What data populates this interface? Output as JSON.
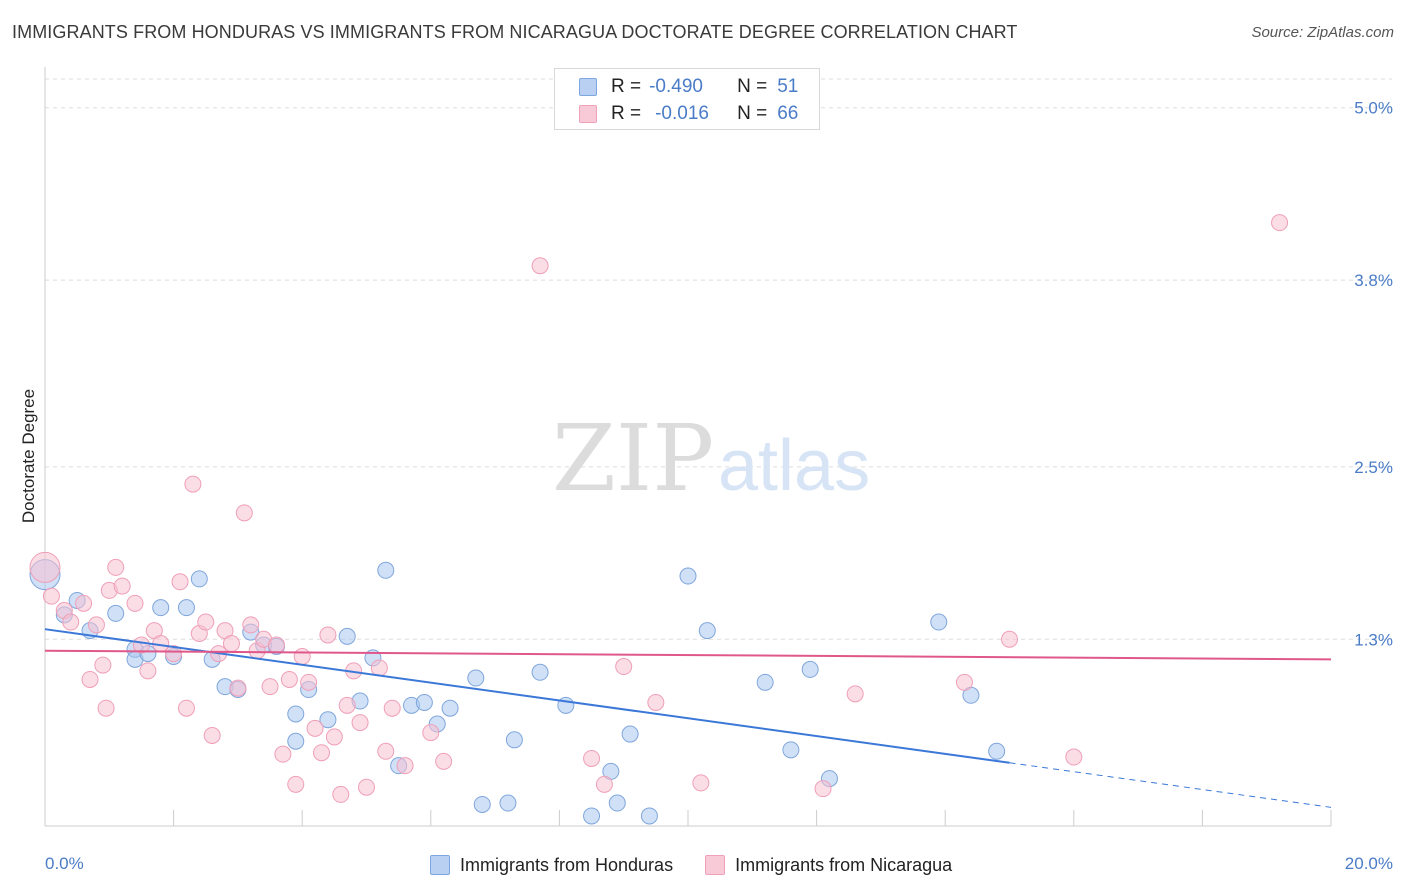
{
  "title": "IMMIGRANTS FROM HONDURAS VS IMMIGRANTS FROM NICARAGUA DOCTORATE DEGREE CORRELATION CHART",
  "source": "Source: ZipAtlas.com",
  "watermark": {
    "zip": "ZIP",
    "atlas": "atlas"
  },
  "legend": {
    "r_label": "R =",
    "n_label": "N =",
    "series1": {
      "r": "-0.490",
      "n": "51"
    },
    "series2": {
      "r": "-0.016",
      "n": "66"
    }
  },
  "colors": {
    "series1_fill": "#a9c6ef",
    "series1_stroke": "#7fa6dc",
    "series1_line": "#3b78d8",
    "series2_fill": "#f7c1d2",
    "series2_stroke": "#ef9fb8",
    "series2_line": "#e0588a",
    "grid": "#dddddd",
    "tick_text": "#4a7cc7"
  },
  "chart_data": {
    "type": "scatter",
    "title": "IMMIGRANTS FROM HONDURAS VS IMMIGRANTS FROM NICARAGUA DOCTORATE DEGREE CORRELATION CHART",
    "xlabel": "",
    "ylabel": "Doctorate Degree",
    "xlim": [
      0,
      20
    ],
    "ylim": [
      0,
      5.2
    ],
    "x_ticks": [
      0,
      20
    ],
    "x_tick_labels": [
      "0.0%",
      "20.0%"
    ],
    "y_ticks": [
      1.3,
      2.5,
      3.8,
      5.0
    ],
    "y_tick_labels": [
      "1.3%",
      "2.5%",
      "3.8%",
      "5.0%"
    ],
    "grid": true,
    "legend_position": "top-center",
    "series": [
      {
        "name": "Immigrants from Honduras",
        "points": [
          [
            0.0,
            1.75
          ],
          [
            0.3,
            1.47
          ],
          [
            0.5,
            1.57
          ],
          [
            0.7,
            1.36
          ],
          [
            1.1,
            1.48
          ],
          [
            1.4,
            1.23
          ],
          [
            1.4,
            1.16
          ],
          [
            1.6,
            1.2
          ],
          [
            1.8,
            1.52
          ],
          [
            2.0,
            1.18
          ],
          [
            2.2,
            1.52
          ],
          [
            2.4,
            1.72
          ],
          [
            2.6,
            1.16
          ],
          [
            2.8,
            0.97
          ],
          [
            3.0,
            0.95
          ],
          [
            3.2,
            1.35
          ],
          [
            3.4,
            1.26
          ],
          [
            3.6,
            1.25
          ],
          [
            3.9,
            0.78
          ],
          [
            3.9,
            0.59
          ],
          [
            4.1,
            0.95
          ],
          [
            4.4,
            0.74
          ],
          [
            4.7,
            1.32
          ],
          [
            4.9,
            0.87
          ],
          [
            5.1,
            1.17
          ],
          [
            5.3,
            1.78
          ],
          [
            5.5,
            0.42
          ],
          [
            5.7,
            0.84
          ],
          [
            5.9,
            0.86
          ],
          [
            6.1,
            0.71
          ],
          [
            6.3,
            0.82
          ],
          [
            6.7,
            1.03
          ],
          [
            6.8,
            0.15
          ],
          [
            7.2,
            0.16
          ],
          [
            7.3,
            0.6
          ],
          [
            7.7,
            1.07
          ],
          [
            8.1,
            0.84
          ],
          [
            8.5,
            0.07
          ],
          [
            8.8,
            0.38
          ],
          [
            8.9,
            0.16
          ],
          [
            9.1,
            0.64
          ],
          [
            9.4,
            0.07
          ],
          [
            10.0,
            1.74
          ],
          [
            10.3,
            1.36
          ],
          [
            11.2,
            1.0
          ],
          [
            11.6,
            0.53
          ],
          [
            11.9,
            1.09
          ],
          [
            12.2,
            0.33
          ],
          [
            13.9,
            1.42
          ],
          [
            14.4,
            0.91
          ],
          [
            14.8,
            0.52
          ]
        ]
      },
      {
        "name": "Immigrants from Nicaragua",
        "points": [
          [
            0.0,
            1.8
          ],
          [
            0.1,
            1.6
          ],
          [
            0.3,
            1.5
          ],
          [
            0.4,
            1.42
          ],
          [
            0.6,
            1.55
          ],
          [
            0.7,
            1.02
          ],
          [
            0.8,
            1.4
          ],
          [
            0.9,
            1.12
          ],
          [
            0.95,
            0.82
          ],
          [
            1.0,
            1.64
          ],
          [
            1.1,
            1.8
          ],
          [
            1.2,
            1.67
          ],
          [
            1.4,
            1.55
          ],
          [
            1.5,
            1.26
          ],
          [
            1.6,
            1.08
          ],
          [
            1.7,
            1.36
          ],
          [
            1.8,
            1.27
          ],
          [
            2.0,
            1.2
          ],
          [
            2.1,
            1.7
          ],
          [
            2.2,
            0.82
          ],
          [
            2.3,
            2.38
          ],
          [
            2.4,
            1.34
          ],
          [
            2.5,
            1.42
          ],
          [
            2.6,
            0.63
          ],
          [
            2.7,
            1.2
          ],
          [
            2.8,
            1.36
          ],
          [
            2.9,
            1.27
          ],
          [
            3.0,
            0.96
          ],
          [
            3.1,
            2.18
          ],
          [
            3.2,
            1.4
          ],
          [
            3.3,
            1.22
          ],
          [
            3.4,
            1.3
          ],
          [
            3.5,
            0.97
          ],
          [
            3.6,
            1.26
          ],
          [
            3.7,
            0.5
          ],
          [
            3.8,
            1.02
          ],
          [
            3.9,
            0.29
          ],
          [
            4.0,
            1.18
          ],
          [
            4.1,
            1.0
          ],
          [
            4.2,
            0.68
          ],
          [
            4.3,
            0.51
          ],
          [
            4.4,
            1.33
          ],
          [
            4.5,
            0.62
          ],
          [
            4.6,
            0.22
          ],
          [
            4.7,
            0.84
          ],
          [
            4.8,
            1.08
          ],
          [
            4.9,
            0.72
          ],
          [
            5.0,
            0.27
          ],
          [
            5.2,
            1.1
          ],
          [
            5.3,
            0.52
          ],
          [
            5.4,
            0.82
          ],
          [
            5.6,
            0.42
          ],
          [
            6.0,
            0.65
          ],
          [
            6.2,
            0.45
          ],
          [
            7.7,
            3.9
          ],
          [
            8.5,
            0.47
          ],
          [
            8.7,
            0.29
          ],
          [
            9.0,
            1.11
          ],
          [
            9.5,
            0.86
          ],
          [
            10.2,
            0.3
          ],
          [
            12.1,
            0.26
          ],
          [
            12.6,
            0.92
          ],
          [
            14.3,
            1.0
          ],
          [
            15.0,
            1.3
          ],
          [
            16.0,
            0.48
          ],
          [
            19.2,
            4.2
          ]
        ]
      }
    ],
    "trend_lines": [
      {
        "series": "Immigrants from Honduras",
        "x": [
          0,
          15
        ],
        "y": [
          1.37,
          0.44
        ],
        "dashed_extension": [
          15,
          20
        ]
      },
      {
        "series": "Immigrants from Nicaragua",
        "x": [
          0,
          20
        ],
        "y": [
          1.22,
          1.16
        ]
      }
    ]
  },
  "bottom_legend": {
    "series1": "Immigrants from Honduras",
    "series2": "Immigrants from Nicaragua"
  }
}
